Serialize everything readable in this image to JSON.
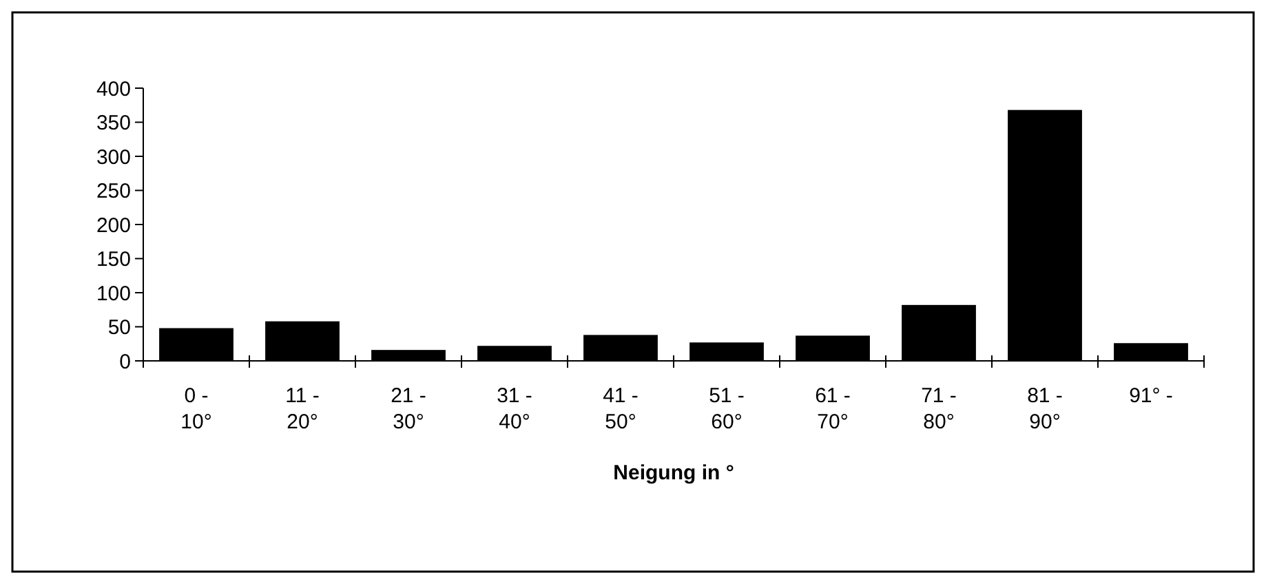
{
  "chart_data": {
    "type": "bar",
    "xlabel": "Neigung in °",
    "categories": [
      "0 - 10°",
      "11 - 20°",
      "21 - 30°",
      "31 - 40°",
      "41 - 50°",
      "51 - 60°",
      "61 - 70°",
      "71 - 80°",
      "81 - 90°",
      "91° -"
    ],
    "values": [
      48,
      58,
      16,
      22,
      38,
      27,
      37,
      82,
      368,
      26
    ],
    "color": "#000000",
    "ylim": [
      0,
      400
    ],
    "yticks": [
      0,
      50,
      100,
      150,
      200,
      250,
      300,
      350,
      400
    ]
  }
}
